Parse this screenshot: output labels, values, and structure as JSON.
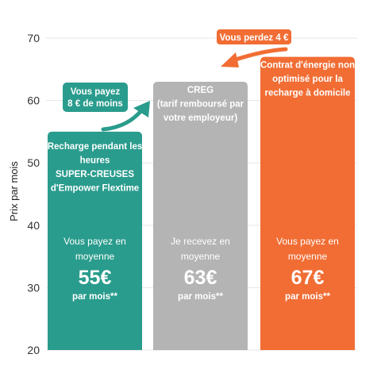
{
  "chart_data": {
    "type": "bar",
    "ylabel": "Prix par mois",
    "ylim": [
      20,
      70
    ],
    "yticks": [
      20,
      30,
      40,
      50,
      60,
      70
    ],
    "grid": true,
    "categories": [
      [
        "Recharge pendant les",
        "heures",
        "SUPER-CREUSES",
        "d'Empower Flextime"
      ],
      [
        "CREG",
        "(tarif remboursé par",
        "votre employeur)"
      ],
      [
        "Contrat d'énergie non",
        "optimisé pour la",
        "recharge à domicile"
      ]
    ],
    "values": [
      55,
      63,
      67
    ],
    "bar_texts": [
      {
        "caption": [
          "Vous payez en",
          "moyenne"
        ],
        "amount": "55€",
        "suffix": "par mois**"
      },
      {
        "caption": [
          "Je recevez en",
          "moyenne"
        ],
        "amount": "63€",
        "suffix": "par mois**"
      },
      {
        "caption": [
          "Vous payez en",
          "moyenne"
        ],
        "amount": "67€",
        "suffix": "par mois**"
      }
    ],
    "annotations": [
      [
        "Vous payez",
        "8 € de moins"
      ],
      [
        "Vous perdez 4 €"
      ]
    ]
  },
  "colors": {
    "bars": [
      "#2a9c8d",
      "#b4b4b4",
      "#f16d34"
    ],
    "badges": [
      "#2a9c8d",
      "#f16d34"
    ],
    "grid": "#e6e6e6",
    "tick_text": "#333333"
  }
}
